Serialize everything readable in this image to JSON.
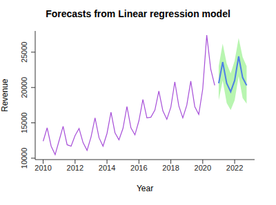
{
  "chart_data": {
    "type": "line",
    "title": "Forecasts from Linear regression model",
    "x_label": "Year",
    "y_label": "Revenue",
    "x": [
      2010,
      2010.25,
      2010.5,
      2010.75,
      2011,
      2011.25,
      2011.5,
      2011.75,
      2012,
      2012.25,
      2012.5,
      2012.75,
      2013,
      2013.25,
      2013.5,
      2013.75,
      2014,
      2014.25,
      2014.5,
      2014.75,
      2015,
      2015.25,
      2015.5,
      2015.75,
      2016,
      2016.25,
      2016.5,
      2016.75,
      2017,
      2017.25,
      2017.5,
      2017.75,
      2018,
      2018.25,
      2018.5,
      2018.75,
      2019,
      2019.25,
      2019.5,
      2019.75,
      2020,
      2020.25,
      2020.5,
      2020.75,
      2021,
      2021.25,
      2021.5,
      2021.75,
      2022,
      2022.25,
      2022.5,
      2022.75
    ],
    "series": [
      {
        "type": "area",
        "color": "#b8f5b0",
        "values": [
          null,
          null,
          null,
          null,
          null,
          null,
          null,
          null,
          null,
          null,
          null,
          null,
          null,
          null,
          null,
          null,
          null,
          null,
          null,
          null,
          null,
          null,
          null,
          null,
          null,
          null,
          null,
          null,
          null,
          null,
          null,
          null,
          null,
          null,
          null,
          null,
          null,
          null,
          null,
          null,
          null,
          null,
          null,
          null,
          [
            18200,
            23000
          ],
          [
            21000,
            26200
          ],
          [
            17800,
            23400
          ],
          [
            16800,
            22000
          ],
          [
            18200,
            23800
          ],
          [
            21600,
            27000
          ],
          [
            18500,
            24300
          ],
          [
            17700,
            23000
          ]
        ]
      },
      {
        "type": "line",
        "color": "#a64ed8",
        "values": [
          12400,
          14300,
          11700,
          10500,
          12500,
          14500,
          11900,
          11700,
          13200,
          14200,
          12200,
          11100,
          13000,
          15700,
          12900,
          11700,
          13500,
          16500,
          13600,
          12600,
          14200,
          17300,
          14300,
          13300,
          15300,
          18300,
          15700,
          15800,
          16800,
          19500,
          16700,
          15500,
          17200,
          20800,
          17400,
          15700,
          17500,
          20900,
          17300,
          16200,
          19800,
          27400,
          22600,
          20300,
          null,
          null,
          null,
          null,
          null,
          null,
          null,
          null
        ]
      },
      {
        "type": "line",
        "color": "#4f7fe6",
        "values": [
          null,
          null,
          null,
          null,
          null,
          null,
          null,
          null,
          null,
          null,
          null,
          null,
          null,
          null,
          null,
          null,
          null,
          null,
          null,
          null,
          null,
          null,
          null,
          null,
          null,
          null,
          null,
          null,
          null,
          null,
          null,
          null,
          null,
          null,
          null,
          null,
          null,
          null,
          null,
          null,
          null,
          null,
          null,
          null,
          20600,
          23600,
          20600,
          19400,
          21000,
          24400,
          21400,
          20300
        ]
      }
    ],
    "xlim": [
      2009.5,
      2023.25
    ],
    "xticks": [
      2010,
      2012,
      2014,
      2016,
      2018,
      2020,
      2022
    ],
    "ylim": [
      9800,
      28000
    ],
    "yticks": [
      10000,
      15000,
      20000,
      25000
    ]
  }
}
